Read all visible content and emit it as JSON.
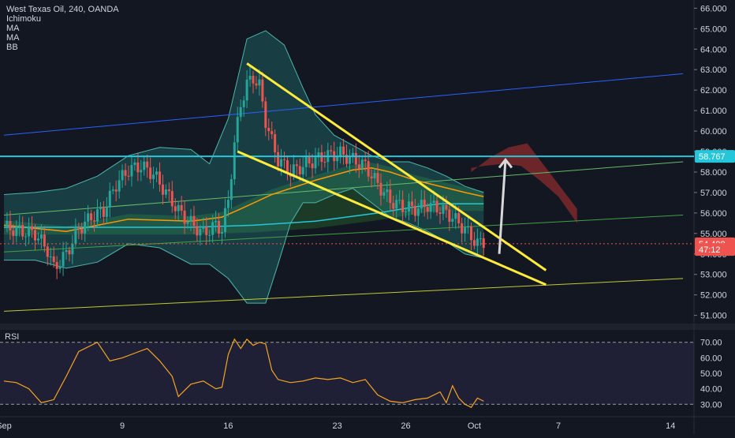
{
  "header": {
    "symbol": "West Texas Oil, 240, OANDA",
    "indicators": [
      "Ichimoku",
      "MA",
      "MA",
      "BB"
    ]
  },
  "price_axis": {
    "ticks": [
      "66.000",
      "65.000",
      "64.000",
      "63.000",
      "62.000",
      "61.000",
      "60.000",
      "59.000",
      "58.000",
      "57.000",
      "56.000",
      "55.000",
      "54.000",
      "53.000",
      "52.000",
      "51.000"
    ],
    "badges": [
      {
        "label": "58.767",
        "value": 58.767,
        "color": "#26c6da"
      },
      {
        "label": "54.498",
        "value": 54.498,
        "color": "#ef5350"
      },
      {
        "label": "47:12",
        "value": 54.22,
        "color": "#ef5350"
      }
    ]
  },
  "rsi": {
    "label": "RSI",
    "ticks": [
      "70.00",
      "60.00",
      "50.00",
      "40.00",
      "30.00"
    ],
    "upper": 70,
    "lower": 30,
    "line_color": "#f5a623",
    "band_color": "#7e57c2"
  },
  "time_axis": {
    "labels": [
      "Sep",
      "9",
      "16",
      "23",
      "26",
      "Oct",
      "7",
      "14"
    ]
  },
  "chart_data": {
    "type": "candlestick",
    "symbol": "West Texas Oil",
    "timeframe": "240",
    "source": "OANDA",
    "ylim": [
      50.6,
      66.4
    ],
    "x_range_bars": [
      0,
      175
    ],
    "current_price": 54.498,
    "horizontal_level": 58.767,
    "price_path": [
      [
        0,
        55.3
      ],
      [
        6,
        55.1
      ],
      [
        10,
        55.0
      ],
      [
        14,
        54.2
      ],
      [
        16,
        53.3
      ],
      [
        20,
        54.0
      ],
      [
        24,
        55.2
      ],
      [
        28,
        55.8
      ],
      [
        32,
        56.1
      ],
      [
        36,
        57.4
      ],
      [
        40,
        58.1
      ],
      [
        44,
        58.3
      ],
      [
        48,
        57.9
      ],
      [
        52,
        57.0
      ],
      [
        56,
        56.1
      ],
      [
        60,
        55.5
      ],
      [
        64,
        55.0
      ],
      [
        68,
        55.4
      ],
      [
        70,
        55.2
      ],
      [
        72,
        56.6
      ],
      [
        74,
        59.4
      ],
      [
        76,
        61.3
      ],
      [
        78,
        62.3
      ],
      [
        80,
        62.6
      ],
      [
        82,
        62.2
      ],
      [
        84,
        60.5
      ],
      [
        86,
        59.5
      ],
      [
        88,
        58.6
      ],
      [
        92,
        58.0
      ],
      [
        96,
        58.3
      ],
      [
        100,
        58.6
      ],
      [
        104,
        58.8
      ],
      [
        108,
        58.9
      ],
      [
        112,
        58.6
      ],
      [
        116,
        58.3
      ],
      [
        120,
        57.4
      ],
      [
        124,
        56.6
      ],
      [
        128,
        56.3
      ],
      [
        132,
        56.2
      ],
      [
        136,
        56.4
      ],
      [
        140,
        56.2
      ],
      [
        144,
        55.8
      ],
      [
        148,
        55.2
      ],
      [
        152,
        54.5
      ],
      [
        154,
        54.6
      ]
    ],
    "rsi_path": [
      [
        0,
        45
      ],
      [
        4,
        44
      ],
      [
        8,
        40
      ],
      [
        12,
        31
      ],
      [
        16,
        33
      ],
      [
        20,
        48
      ],
      [
        24,
        64
      ],
      [
        28,
        68
      ],
      [
        30,
        70
      ],
      [
        34,
        58
      ],
      [
        38,
        60
      ],
      [
        42,
        63
      ],
      [
        46,
        66
      ],
      [
        50,
        58
      ],
      [
        54,
        48
      ],
      [
        56,
        35
      ],
      [
        60,
        43
      ],
      [
        64,
        45
      ],
      [
        68,
        40
      ],
      [
        70,
        41
      ],
      [
        72,
        62
      ],
      [
        74,
        72
      ],
      [
        76,
        66
      ],
      [
        78,
        72
      ],
      [
        80,
        68
      ],
      [
        82,
        70
      ],
      [
        84,
        69
      ],
      [
        86,
        52
      ],
      [
        88,
        46
      ],
      [
        92,
        44
      ],
      [
        96,
        45
      ],
      [
        100,
        47
      ],
      [
        104,
        46
      ],
      [
        108,
        47
      ],
      [
        112,
        44
      ],
      [
        116,
        46
      ],
      [
        120,
        36
      ],
      [
        124,
        32
      ],
      [
        128,
        31
      ],
      [
        132,
        33
      ],
      [
        136,
        34
      ],
      [
        140,
        38
      ],
      [
        142,
        31
      ],
      [
        144,
        42
      ],
      [
        146,
        34
      ],
      [
        148,
        30
      ],
      [
        150,
        28
      ],
      [
        152,
        34
      ],
      [
        154,
        32
      ]
    ],
    "ma_orange": [
      [
        0,
        55.4
      ],
      [
        20,
        55.1
      ],
      [
        40,
        55.7
      ],
      [
        60,
        55.6
      ],
      [
        70,
        55.8
      ],
      [
        76,
        56.2
      ],
      [
        86,
        56.9
      ],
      [
        100,
        57.6
      ],
      [
        112,
        58.1
      ],
      [
        118,
        58.2
      ],
      [
        124,
        58.0
      ],
      [
        132,
        57.6
      ],
      [
        140,
        57.3
      ],
      [
        148,
        57.0
      ],
      [
        154,
        56.8
      ]
    ],
    "ma_teal": [
      [
        0,
        55.3
      ],
      [
        30,
        55.3
      ],
      [
        60,
        55.3
      ],
      [
        80,
        55.4
      ],
      [
        100,
        55.6
      ],
      [
        120,
        56.0
      ],
      [
        132,
        56.3
      ],
      [
        140,
        56.45
      ],
      [
        154,
        56.45
      ]
    ],
    "bb_upper": [
      [
        0,
        56.9
      ],
      [
        10,
        57.0
      ],
      [
        20,
        57.2
      ],
      [
        30,
        57.8
      ],
      [
        40,
        58.8
      ],
      [
        50,
        59.2
      ],
      [
        60,
        59.1
      ],
      [
        66,
        58.4
      ],
      [
        72,
        60.6
      ],
      [
        78,
        64.5
      ],
      [
        84,
        64.9
      ],
      [
        90,
        64.2
      ],
      [
        96,
        62.1
      ],
      [
        100,
        60.8
      ],
      [
        106,
        59.8
      ],
      [
        112,
        59.3
      ],
      [
        118,
        58.8
      ],
      [
        124,
        58.5
      ],
      [
        130,
        58.5
      ],
      [
        136,
        58.2
      ],
      [
        142,
        57.8
      ],
      [
        148,
        57.3
      ],
      [
        154,
        57.0
      ]
    ],
    "bb_lower": [
      [
        0,
        53.7
      ],
      [
        10,
        53.7
      ],
      [
        20,
        53.3
      ],
      [
        30,
        53.6
      ],
      [
        40,
        54.5
      ],
      [
        50,
        54.3
      ],
      [
        60,
        53.5
      ],
      [
        66,
        53.5
      ],
      [
        72,
        52.8
      ],
      [
        78,
        51.6
      ],
      [
        84,
        51.6
      ],
      [
        88,
        53.5
      ],
      [
        92,
        55.5
      ],
      [
        96,
        56.5
      ],
      [
        100,
        56.5
      ],
      [
        106,
        56.9
      ],
      [
        112,
        57.2
      ],
      [
        118,
        56.5
      ],
      [
        124,
        55.8
      ],
      [
        130,
        55.5
      ],
      [
        136,
        55.1
      ],
      [
        142,
        54.6
      ],
      [
        148,
        54.0
      ],
      [
        154,
        53.8
      ]
    ],
    "trendlines": {
      "wedge_upper": [
        [
          78,
          63.3
        ],
        [
          174,
          53.2
        ]
      ],
      "wedge_lower": [
        [
          75,
          59.0
        ],
        [
          174,
          52.5
        ]
      ],
      "channel_upper": [
        [
          0,
          59.8
        ],
        [
          218,
          62.8
        ]
      ],
      "channel_lower": [
        [
          0,
          51.2
        ],
        [
          218,
          52.8
        ]
      ],
      "channel_mid": [
        [
          0,
          54.1
        ],
        [
          218,
          55.9
        ]
      ],
      "channel_mid2": [
        [
          0,
          55.9
        ],
        [
          218,
          58.5
        ]
      ]
    },
    "arrow": {
      "from": [
        159,
        54.0
      ],
      "to": [
        161,
        58.6
      ]
    },
    "cloud_future": [
      [
        150,
        58.0
      ],
      [
        156,
        58.7
      ],
      [
        162,
        59.2
      ],
      [
        168,
        59.4
      ],
      [
        172,
        58.6
      ],
      [
        178,
        57.4
      ],
      [
        184,
        56.2
      ],
      [
        184,
        55.5
      ],
      [
        178,
        56.8
      ],
      [
        172,
        57.6
      ],
      [
        166,
        58.3
      ],
      [
        160,
        58.4
      ],
      [
        154,
        58.3
      ],
      [
        150,
        58.2
      ]
    ],
    "bar_ticks": {
      "Sep": 0,
      "9": 38,
      "16": 72,
      "23": 107,
      "26": 129,
      "Oct": 151,
      "7": 178,
      "14": 214
    }
  }
}
